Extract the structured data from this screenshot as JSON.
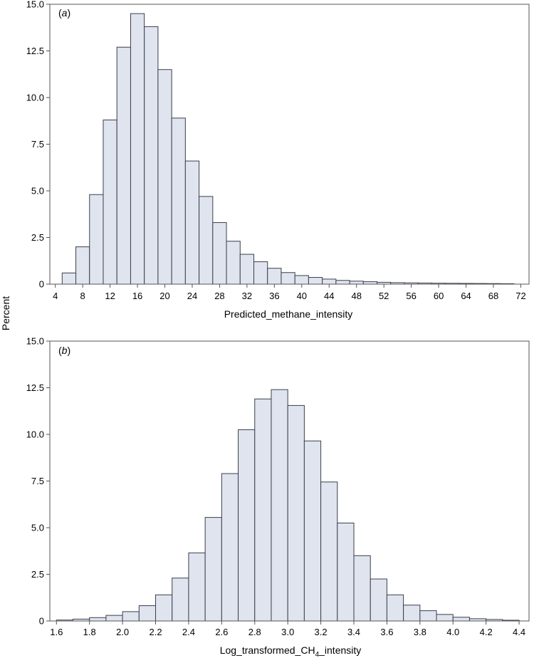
{
  "figure": {
    "ylabel": "Percent",
    "bar_fill": "#dfe4ef",
    "bar_stroke": "#3a3f4d",
    "frame_color": "#555555"
  },
  "chart_data": [
    {
      "type": "bar",
      "subtype": "histogram",
      "panel_label": {
        "open": "(",
        "letter": "a",
        "close": ")"
      },
      "xlabel": "Predicted_methane_intensity",
      "ylabel": "Percent",
      "xlim": [
        3.2,
        73.2
      ],
      "ylim": [
        0,
        15
      ],
      "yticks": [
        0,
        2.5,
        5.0,
        7.5,
        10.0,
        12.5,
        15.0
      ],
      "ytick_labels": [
        "0",
        "2.5",
        "5.0",
        "7.5",
        "10.0",
        "12.5",
        "15.0"
      ],
      "xticks": [
        4,
        8,
        12,
        16,
        20,
        24,
        28,
        32,
        36,
        40,
        44,
        48,
        52,
        56,
        60,
        64,
        68,
        72
      ],
      "xtick_labels": [
        "4",
        "8",
        "12",
        "16",
        "20",
        "24",
        "28",
        "32",
        "36",
        "40",
        "44",
        "48",
        "52",
        "56",
        "60",
        "64",
        "68",
        "72"
      ],
      "bin_width": 2,
      "bin_start": 5,
      "values": [
        0.6,
        2.0,
        4.8,
        8.8,
        12.7,
        14.5,
        13.8,
        11.5,
        8.9,
        6.6,
        4.7,
        3.3,
        2.3,
        1.6,
        1.2,
        0.85,
        0.62,
        0.46,
        0.36,
        0.27,
        0.2,
        0.16,
        0.13,
        0.1,
        0.08,
        0.07,
        0.06,
        0.05,
        0.045,
        0.04,
        0.035,
        0.03,
        0.025
      ],
      "grid": false
    },
    {
      "type": "bar",
      "subtype": "histogram",
      "panel_label": {
        "open": "(",
        "letter": "b",
        "close": ")"
      },
      "xlabel": {
        "pre": "Log_transformed_CH",
        "sub": "4",
        "post": "_intensity"
      },
      "ylabel": "Percent",
      "xlim": [
        1.56,
        4.46
      ],
      "ylim": [
        0,
        15
      ],
      "yticks": [
        0,
        2.5,
        5.0,
        7.5,
        10.0,
        12.5,
        15.0
      ],
      "ytick_labels": [
        "0",
        "2.5",
        "5.0",
        "7.5",
        "10.0",
        "12.5",
        "15.0"
      ],
      "xticks": [
        1.6,
        1.8,
        2.0,
        2.2,
        2.4,
        2.6,
        2.8,
        3.0,
        3.2,
        3.4,
        3.6,
        3.8,
        4.0,
        4.2,
        4.4
      ],
      "xtick_labels": [
        "1.6",
        "1.8",
        "2.0",
        "2.2",
        "2.4",
        "2.6",
        "2.8",
        "3.0",
        "3.2",
        "3.4",
        "3.6",
        "3.8",
        "4.0",
        "4.2",
        "4.4"
      ],
      "bin_width": 0.1,
      "bin_start": 1.6,
      "values": [
        0.05,
        0.1,
        0.18,
        0.3,
        0.5,
        0.82,
        1.4,
        2.3,
        3.65,
        5.55,
        7.9,
        10.25,
        11.9,
        12.4,
        11.55,
        9.65,
        7.45,
        5.25,
        3.5,
        2.25,
        1.4,
        0.85,
        0.55,
        0.35,
        0.2,
        0.12,
        0.08,
        0.04
      ],
      "grid": false
    }
  ]
}
